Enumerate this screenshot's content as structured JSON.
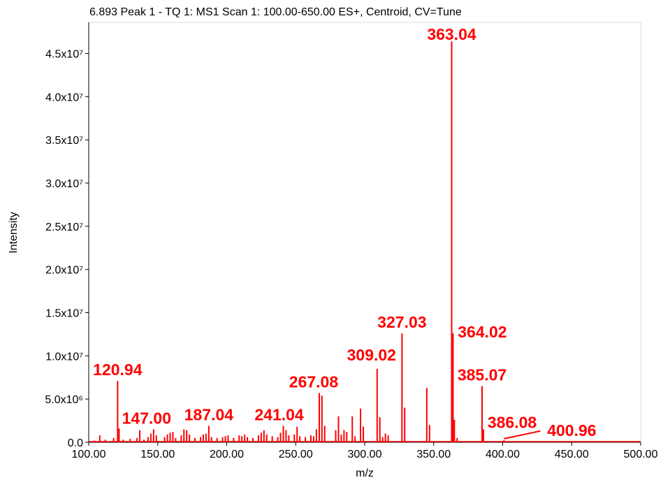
{
  "chart_data": {
    "type": "spectrum",
    "title": "6.893 Peak 1 - TQ 1: MS1 Scan 1: 100.00-650.00 ES+, Centroid, CV=Tune",
    "x_label": "m/z",
    "y_label": "Intensity",
    "color": "#ff0000",
    "grid": false,
    "xlim": [
      100,
      500
    ],
    "ylim": [
      0,
      48600000
    ],
    "xticks": [
      {
        "value": 100,
        "label": "100.00"
      },
      {
        "value": 150,
        "label": "150.00"
      },
      {
        "value": 200,
        "label": "200.00"
      },
      {
        "value": 250,
        "label": "250.00"
      },
      {
        "value": 300,
        "label": "300.00"
      },
      {
        "value": 350,
        "label": "350.00"
      },
      {
        "value": 400,
        "label": "400.00"
      },
      {
        "value": 450,
        "label": "450.00"
      },
      {
        "value": 500,
        "label": "500.00"
      }
    ],
    "yticks": [
      {
        "value": 0,
        "label": "0.0"
      },
      {
        "value": 5000000,
        "label": "5.0x10⁶"
      },
      {
        "value": 10000000,
        "label": "1.0x10⁷"
      },
      {
        "value": 15000000,
        "label": "1.5x10⁷"
      },
      {
        "value": 20000000,
        "label": "2.0x10⁷"
      },
      {
        "value": 25000000,
        "label": "2.5x10⁷"
      },
      {
        "value": 30000000,
        "label": "3.0x10⁷"
      },
      {
        "value": 35000000,
        "label": "3.5x10⁷"
      },
      {
        "value": 40000000,
        "label": "4.0x10⁷"
      },
      {
        "value": 45000000,
        "label": "4.5x10⁷"
      }
    ],
    "x": [
      104,
      108,
      112,
      118,
      120.94,
      122,
      125,
      130,
      135,
      137,
      140,
      143,
      145,
      147.0,
      149,
      155,
      157,
      159,
      161,
      163,
      167,
      169,
      171,
      173,
      177,
      181,
      183,
      185,
      187.04,
      189,
      193,
      197,
      199,
      201,
      205,
      209,
      211,
      213,
      215,
      219,
      223,
      225,
      227,
      229,
      233,
      237,
      239,
      241.04,
      243,
      245,
      249,
      251,
      253,
      257,
      261,
      263,
      265,
      267.08,
      269,
      271,
      279,
      281,
      283,
      285,
      287,
      291,
      293,
      297,
      299,
      309.02,
      311,
      313,
      315,
      317,
      327.03,
      329,
      345,
      347,
      363.04,
      364.02,
      365,
      367,
      385.07,
      386.08,
      400.96
    ],
    "values": [
      200000,
      800000,
      300000,
      500000,
      7100000,
      1600000,
      300000,
      400000,
      500000,
      1400000,
      300000,
      600000,
      1000000,
      1500000,
      800000,
      600000,
      900000,
      1100000,
      1200000,
      500000,
      800000,
      1500000,
      1400000,
      900000,
      500000,
      600000,
      900000,
      1000000,
      1900000,
      600000,
      500000,
      600000,
      700000,
      800000,
      500000,
      800000,
      700000,
      900000,
      600000,
      500000,
      800000,
      1100000,
      1400000,
      900000,
      700000,
      600000,
      1100000,
      1900000,
      1400000,
      800000,
      900000,
      1800000,
      700000,
      600000,
      800000,
      700000,
      1500000,
      5700000,
      5400000,
      1900000,
      1400000,
      3000000,
      900000,
      1400000,
      1200000,
      3000000,
      700000,
      3900000,
      1800000,
      8500000,
      2900000,
      600000,
      1000000,
      800000,
      12600000,
      4000000,
      6300000,
      2000000,
      46400000,
      12600000,
      2600000,
      500000,
      6500000,
      1500000,
      250000
    ],
    "labels": [
      null,
      null,
      null,
      null,
      "120.94",
      null,
      null,
      null,
      null,
      null,
      null,
      null,
      null,
      "147.00",
      null,
      null,
      null,
      null,
      null,
      null,
      null,
      null,
      null,
      null,
      null,
      null,
      null,
      null,
      "187.04",
      null,
      null,
      null,
      null,
      null,
      null,
      null,
      null,
      null,
      null,
      null,
      null,
      null,
      null,
      null,
      null,
      null,
      null,
      "241.04",
      null,
      null,
      null,
      null,
      null,
      null,
      null,
      null,
      null,
      "267.08",
      null,
      null,
      null,
      null,
      null,
      null,
      null,
      null,
      null,
      null,
      null,
      "309.02",
      null,
      null,
      null,
      null,
      "327.03",
      null,
      null,
      null,
      "363.04",
      "364.02",
      null,
      null,
      "385.07",
      "386.08",
      "400.96"
    ]
  }
}
